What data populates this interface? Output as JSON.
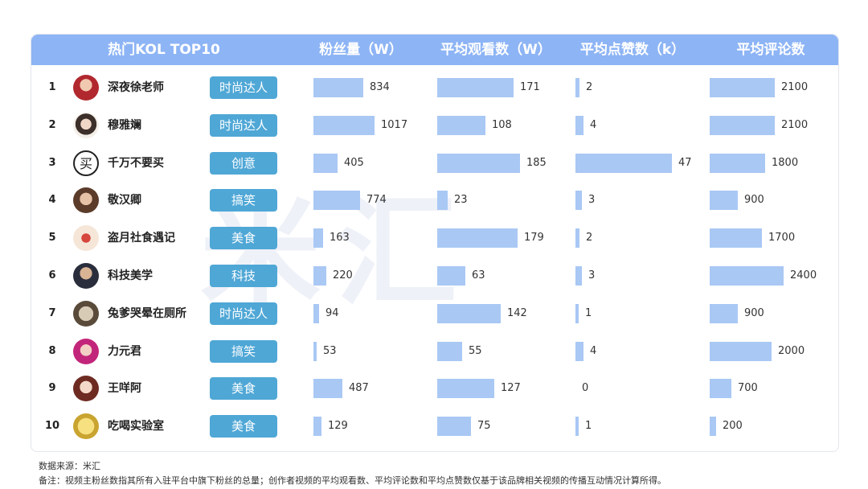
{
  "chart_data": {
    "type": "table",
    "title": "热门KOL TOP10",
    "columns": [
      "热门KOL TOP10",
      "粉丝量（W）",
      "平均观看数（W）",
      "平均点赞数（k）",
      "平均评论数"
    ],
    "max_values": {
      "fans": 1017,
      "views": 185,
      "likes": 47,
      "comments": 2400
    },
    "rows": [
      {
        "rank": "1",
        "name": "深夜徐老师",
        "tag": "时尚达人",
        "fans": 834,
        "views": 171,
        "likes": 2,
        "comments": 2100
      },
      {
        "rank": "2",
        "name": "穆雅斓",
        "tag": "时尚达人",
        "fans": 1017,
        "views": 108,
        "likes": 4,
        "comments": 2100
      },
      {
        "rank": "3",
        "name": "千万不要买",
        "tag": "创意",
        "fans": 405,
        "views": 185,
        "likes": 47,
        "comments": 1800
      },
      {
        "rank": "4",
        "name": "敬汉卿",
        "tag": "搞笑",
        "fans": 774,
        "views": 23,
        "likes": 3,
        "comments": 900
      },
      {
        "rank": "5",
        "name": "盗月社食遇记",
        "tag": "美食",
        "fans": 163,
        "views": 179,
        "likes": 2,
        "comments": 1700
      },
      {
        "rank": "6",
        "name": "科技美学",
        "tag": "科技",
        "fans": 220,
        "views": 63,
        "likes": 3,
        "comments": 2400
      },
      {
        "rank": "7",
        "name": "兔爹哭晕在厕所",
        "tag": "时尚达人",
        "fans": 94,
        "views": 142,
        "likes": 1,
        "comments": 900
      },
      {
        "rank": "8",
        "name": "力元君",
        "tag": "搞笑",
        "fans": 53,
        "views": 55,
        "likes": 4,
        "comments": 2000
      },
      {
        "rank": "9",
        "name": "王咩阿",
        "tag": "美食",
        "fans": 487,
        "views": 127,
        "likes": 0,
        "comments": 700
      },
      {
        "rank": "10",
        "name": "吃喝实验室",
        "tag": "美食",
        "fans": 129,
        "views": 75,
        "likes": 1,
        "comments": 200
      }
    ]
  },
  "watermark": "米汇",
  "footer": {
    "source": "数据来源：米汇",
    "note": "备注：视频主粉丝数指其所有入驻平台中旗下粉丝的总量；创作者视频的平均观看数、平均评论数和平均点赞数仅基于该品牌相关视频的传播互动情况计算所得。"
  },
  "colors": {
    "header": "#8db4f5",
    "bar": "#a9c8f4",
    "tag": "#4fa7d6"
  },
  "avatar_icons": [
    "avatar-woman-red-icon",
    "avatar-woman-icon",
    "avatar-mai-logo-icon",
    "avatar-man-icon",
    "avatar-group-icon",
    "avatar-man-dark-icon",
    "avatar-cartoon-icon",
    "avatar-anime-girl-icon",
    "avatar-glasses-girl-icon",
    "avatar-yellow-cartoon-icon"
  ]
}
